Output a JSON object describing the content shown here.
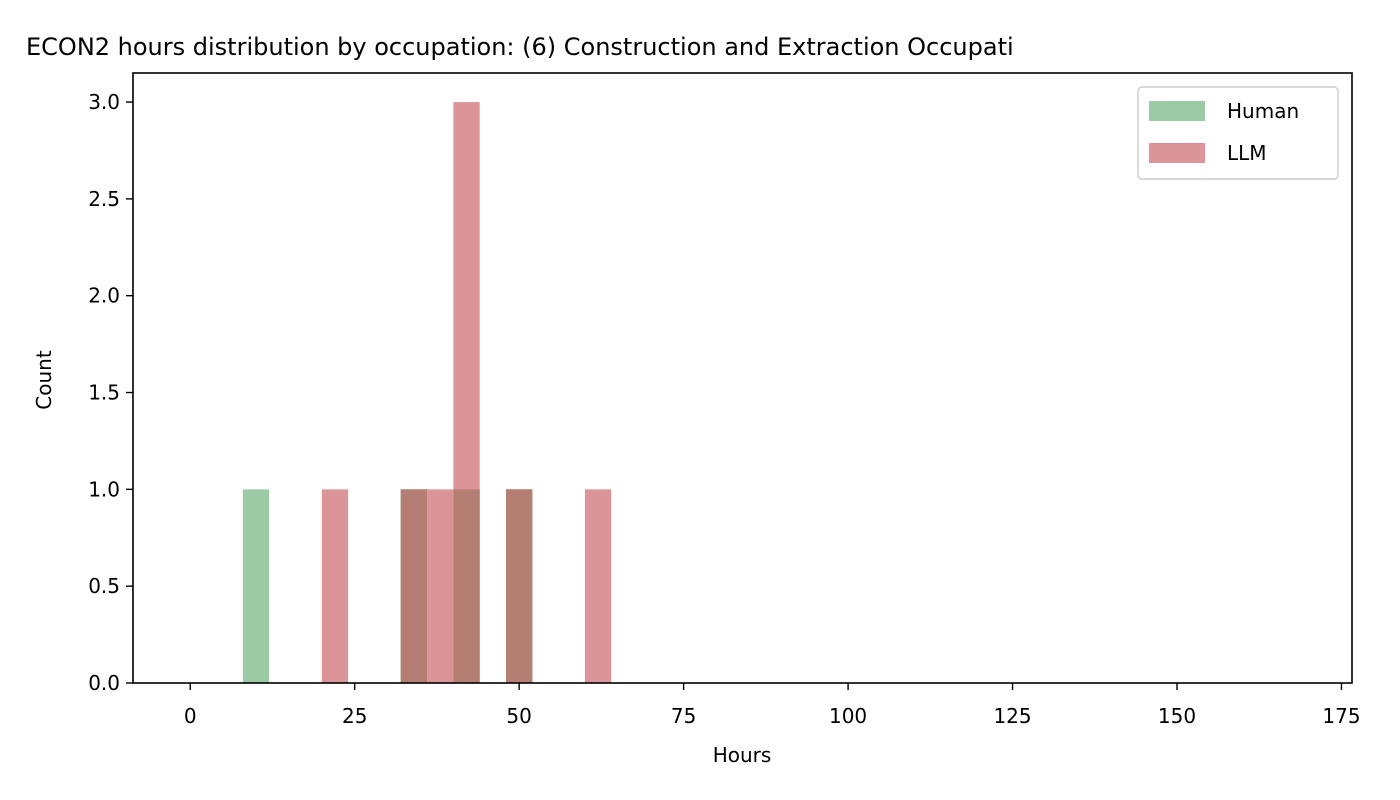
{
  "chart_data": {
    "type": "histogram",
    "title": "ECON2 hours distribution by occupation: (6) Construction and Extraction Occupati",
    "xlabel": "Hours",
    "ylabel": "Count",
    "xlim": [
      -8.7,
      176.6
    ],
    "ylim": [
      0,
      3.15
    ],
    "xticks": [
      0,
      25,
      50,
      75,
      100,
      125,
      150,
      175
    ],
    "yticks": [
      0.0,
      0.5,
      1.0,
      1.5,
      2.0,
      2.5,
      3.0
    ],
    "ytick_labels": [
      "0.0",
      "0.5",
      "1.0",
      "1.5",
      "2.0",
      "2.5",
      "3.0"
    ],
    "legend_position": "upper right",
    "series": [
      {
        "name": "Human",
        "color": "#9bcaa4",
        "bins": [
          {
            "x0": 8,
            "x1": 12,
            "count": 1
          },
          {
            "x0": 32,
            "x1": 36,
            "count": 1
          },
          {
            "x0": 40,
            "x1": 44,
            "count": 1
          },
          {
            "x0": 48,
            "x1": 52,
            "count": 1
          }
        ]
      },
      {
        "name": "LLM",
        "color": "#db9598",
        "bins": [
          {
            "x0": 20,
            "x1": 24,
            "count": 1
          },
          {
            "x0": 32,
            "x1": 36,
            "count": 1
          },
          {
            "x0": 36,
            "x1": 40,
            "count": 1
          },
          {
            "x0": 40,
            "x1": 44,
            "count": 3
          },
          {
            "x0": 48,
            "x1": 52,
            "count": 1
          },
          {
            "x0": 60,
            "x1": 64,
            "count": 1
          }
        ]
      }
    ],
    "overlap_color": "#b47f72"
  }
}
